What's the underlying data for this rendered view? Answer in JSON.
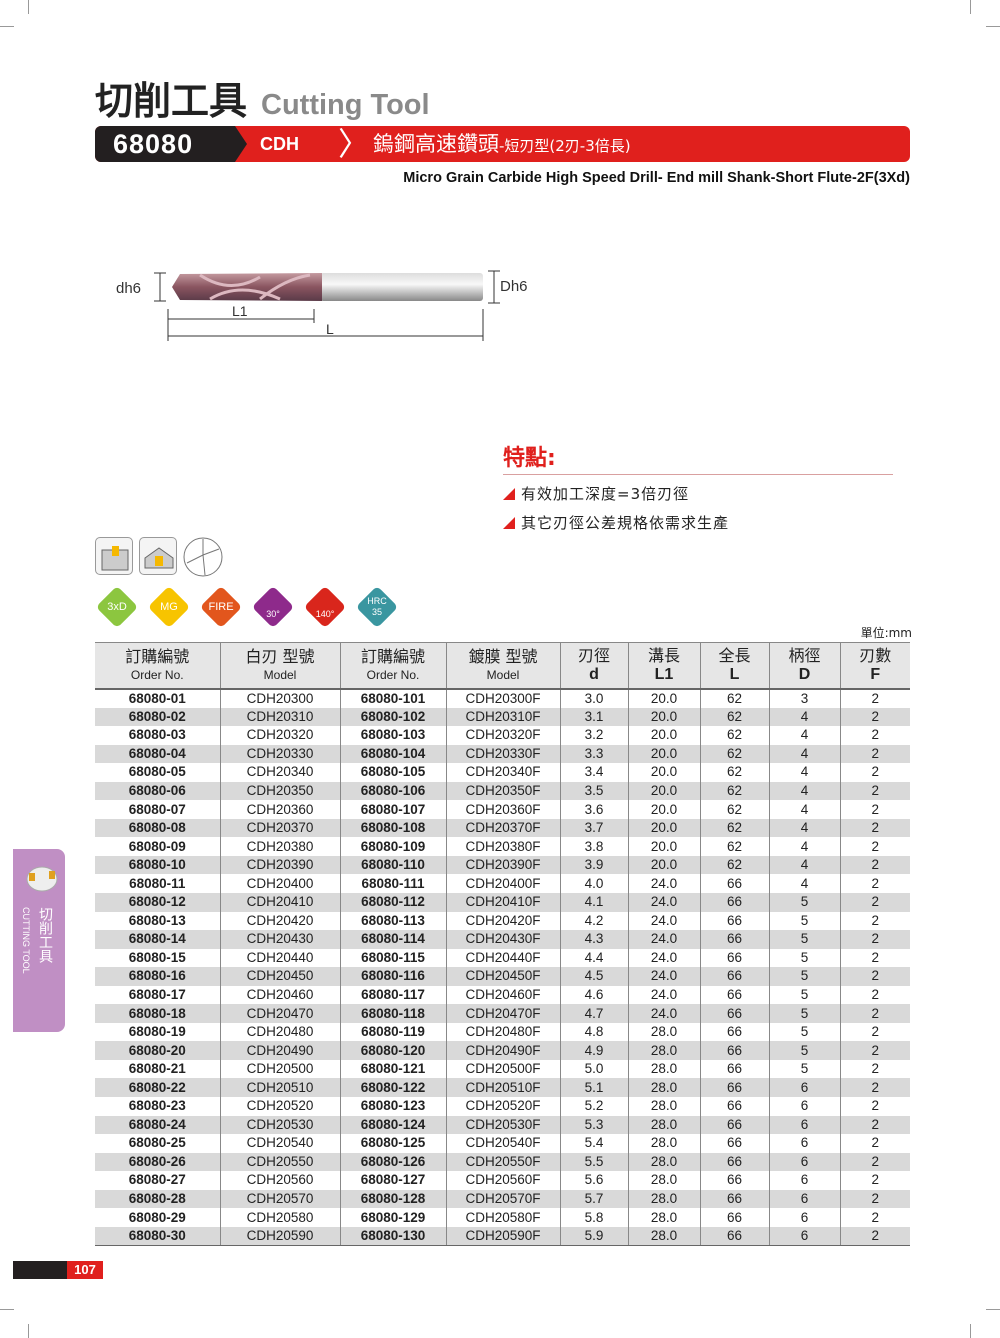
{
  "header": {
    "title_zh": "切削工具",
    "title_en": "Cutting Tool",
    "code": "68080",
    "series": "CDH",
    "name_main": "鎢鋼高速鑽頭",
    "name_sub": "-短刃型(2刃-3倍長)",
    "subtitle": "Micro Grain Carbide High Speed Drill- End mill Shank-Short Flute-2F(3Xd)"
  },
  "diagram": {
    "d_label": "dh6",
    "D_label": "Dh6",
    "L1_label": "L1",
    "L_label": "L"
  },
  "features": {
    "title": "特點:",
    "items": [
      "有效加工深度=3倍刃徑",
      "其它刃徑公差規格依需求生產"
    ]
  },
  "badges": [
    {
      "label": "3xD",
      "color": "#8cc63f"
    },
    {
      "label": "MG",
      "color": "#f7c400"
    },
    {
      "label": "FIRE",
      "color": "#e2561d"
    },
    {
      "label": "30°",
      "color": "#8e2a8b"
    },
    {
      "label": "140°",
      "color": "#d9261c"
    },
    {
      "label": "HRC 35",
      "color": "#3a96a0"
    }
  ],
  "unit": "單位:mm",
  "table": {
    "headers": [
      {
        "zh": "訂購編號",
        "en": "Order No."
      },
      {
        "zh": "白刃 型號",
        "en": "Model"
      },
      {
        "zh": "訂購編號",
        "en": "Order No."
      },
      {
        "zh": "鍍膜 型號",
        "en": "Model"
      },
      {
        "zh": "刃徑",
        "en": "d"
      },
      {
        "zh": "溝長",
        "en": "L1"
      },
      {
        "zh": "全長",
        "en": "L"
      },
      {
        "zh": "柄徑",
        "en": "D"
      },
      {
        "zh": "刃數",
        "en": "F"
      }
    ],
    "rows": [
      [
        "68080-01",
        "CDH20300",
        "68080-101",
        "CDH20300F",
        "3.0",
        "20.0",
        "62",
        "3",
        "2"
      ],
      [
        "68080-02",
        "CDH20310",
        "68080-102",
        "CDH20310F",
        "3.1",
        "20.0",
        "62",
        "4",
        "2"
      ],
      [
        "68080-03",
        "CDH20320",
        "68080-103",
        "CDH20320F",
        "3.2",
        "20.0",
        "62",
        "4",
        "2"
      ],
      [
        "68080-04",
        "CDH20330",
        "68080-104",
        "CDH20330F",
        "3.3",
        "20.0",
        "62",
        "4",
        "2"
      ],
      [
        "68080-05",
        "CDH20340",
        "68080-105",
        "CDH20340F",
        "3.4",
        "20.0",
        "62",
        "4",
        "2"
      ],
      [
        "68080-06",
        "CDH20350",
        "68080-106",
        "CDH20350F",
        "3.5",
        "20.0",
        "62",
        "4",
        "2"
      ],
      [
        "68080-07",
        "CDH20360",
        "68080-107",
        "CDH20360F",
        "3.6",
        "20.0",
        "62",
        "4",
        "2"
      ],
      [
        "68080-08",
        "CDH20370",
        "68080-108",
        "CDH20370F",
        "3.7",
        "20.0",
        "62",
        "4",
        "2"
      ],
      [
        "68080-09",
        "CDH20380",
        "68080-109",
        "CDH20380F",
        "3.8",
        "20.0",
        "62",
        "4",
        "2"
      ],
      [
        "68080-10",
        "CDH20390",
        "68080-110",
        "CDH20390F",
        "3.9",
        "20.0",
        "62",
        "4",
        "2"
      ],
      [
        "68080-11",
        "CDH20400",
        "68080-111",
        "CDH20400F",
        "4.0",
        "24.0",
        "66",
        "4",
        "2"
      ],
      [
        "68080-12",
        "CDH20410",
        "68080-112",
        "CDH20410F",
        "4.1",
        "24.0",
        "66",
        "5",
        "2"
      ],
      [
        "68080-13",
        "CDH20420",
        "68080-113",
        "CDH20420F",
        "4.2",
        "24.0",
        "66",
        "5",
        "2"
      ],
      [
        "68080-14",
        "CDH20430",
        "68080-114",
        "CDH20430F",
        "4.3",
        "24.0",
        "66",
        "5",
        "2"
      ],
      [
        "68080-15",
        "CDH20440",
        "68080-115",
        "CDH20440F",
        "4.4",
        "24.0",
        "66",
        "5",
        "2"
      ],
      [
        "68080-16",
        "CDH20450",
        "68080-116",
        "CDH20450F",
        "4.5",
        "24.0",
        "66",
        "5",
        "2"
      ],
      [
        "68080-17",
        "CDH20460",
        "68080-117",
        "CDH20460F",
        "4.6",
        "24.0",
        "66",
        "5",
        "2"
      ],
      [
        "68080-18",
        "CDH20470",
        "68080-118",
        "CDH20470F",
        "4.7",
        "24.0",
        "66",
        "5",
        "2"
      ],
      [
        "68080-19",
        "CDH20480",
        "68080-119",
        "CDH20480F",
        "4.8",
        "28.0",
        "66",
        "5",
        "2"
      ],
      [
        "68080-20",
        "CDH20490",
        "68080-120",
        "CDH20490F",
        "4.9",
        "28.0",
        "66",
        "5",
        "2"
      ],
      [
        "68080-21",
        "CDH20500",
        "68080-121",
        "CDH20500F",
        "5.0",
        "28.0",
        "66",
        "5",
        "2"
      ],
      [
        "68080-22",
        "CDH20510",
        "68080-122",
        "CDH20510F",
        "5.1",
        "28.0",
        "66",
        "6",
        "2"
      ],
      [
        "68080-23",
        "CDH20520",
        "68080-123",
        "CDH20520F",
        "5.2",
        "28.0",
        "66",
        "6",
        "2"
      ],
      [
        "68080-24",
        "CDH20530",
        "68080-124",
        "CDH20530F",
        "5.3",
        "28.0",
        "66",
        "6",
        "2"
      ],
      [
        "68080-25",
        "CDH20540",
        "68080-125",
        "CDH20540F",
        "5.4",
        "28.0",
        "66",
        "6",
        "2"
      ],
      [
        "68080-26",
        "CDH20550",
        "68080-126",
        "CDH20550F",
        "5.5",
        "28.0",
        "66",
        "6",
        "2"
      ],
      [
        "68080-27",
        "CDH20560",
        "68080-127",
        "CDH20560F",
        "5.6",
        "28.0",
        "66",
        "6",
        "2"
      ],
      [
        "68080-28",
        "CDH20570",
        "68080-128",
        "CDH20570F",
        "5.7",
        "28.0",
        "66",
        "6",
        "2"
      ],
      [
        "68080-29",
        "CDH20580",
        "68080-129",
        "CDH20580F",
        "5.8",
        "28.0",
        "66",
        "6",
        "2"
      ],
      [
        "68080-30",
        "CDH20590",
        "68080-130",
        "CDH20590F",
        "5.9",
        "28.0",
        "66",
        "6",
        "2"
      ]
    ]
  },
  "side_tab": {
    "zh": "切削工具",
    "en": "CUTTING TOOL"
  },
  "page_number": "107"
}
